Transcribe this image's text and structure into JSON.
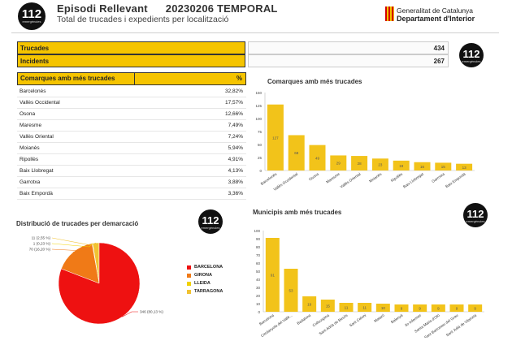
{
  "header": {
    "logo_number": "112",
    "logo_subtext": "emergències",
    "title": "Episodi Rellevant",
    "code": "20230206 TEMPORAL",
    "subtitle": "Total de trucades i expedients per localització",
    "gencat_line1": "Generalitat de Catalunya",
    "gencat_line2": "Departament d'Interior"
  },
  "kpis": {
    "calls_label": "Trucades",
    "calls_value": "434",
    "incidents_label": "Incidents",
    "incidents_value": "267"
  },
  "table": {
    "header_name": "Comarques amb més trucades",
    "header_pct": "%",
    "rows": [
      {
        "name": "Barcelonès",
        "pct": "32,82%"
      },
      {
        "name": "Vallès Occidental",
        "pct": "17,57%"
      },
      {
        "name": "Osona",
        "pct": "12,66%"
      },
      {
        "name": "Maresme",
        "pct": "7,49%"
      },
      {
        "name": "Vallès Oriental",
        "pct": "7,24%"
      },
      {
        "name": "Moianès",
        "pct": "5,94%"
      },
      {
        "name": "Ripollès",
        "pct": "4,91%"
      },
      {
        "name": "Baix Llobregat",
        "pct": "4,13%"
      },
      {
        "name": "Garrotxa",
        "pct": "3,88%"
      },
      {
        "name": "Baix Empordà",
        "pct": "3,36%"
      }
    ]
  },
  "colors": {
    "accent": "#f5c400",
    "bar": "#f2c31a",
    "barcelona": "#ee1111",
    "girona": "#f07a17",
    "lleida": "#f1d100",
    "tarragona": "#f1c232"
  },
  "chart_data": [
    {
      "type": "bar",
      "title": "Comarques amb més trucades",
      "categories": [
        "Barcelonès",
        "Vallès Occidental",
        "Osona",
        "Maresme",
        "Vallès Oriental",
        "Moianès",
        "Ripollès",
        "Baix Llobregat",
        "Garrotxa",
        "Baix Empordà"
      ],
      "values": [
        127,
        68,
        49,
        29,
        28,
        23,
        19,
        16,
        15,
        13
      ],
      "ylim": [
        0,
        150
      ],
      "yticks": [
        0,
        25,
        50,
        75,
        100,
        125,
        150
      ],
      "grid": false
    },
    {
      "type": "bar",
      "title": "Municipis amb més trucades",
      "categories": [
        "Barcelona",
        "Cerdanyola del Vallè...",
        "Badalona",
        "Collsuspina",
        "Sant Adrià de Besòs",
        "Sant Celoni",
        "Mataró",
        "Balenyà",
        "Ilo Infermer",
        "Santa Maria d'Oló",
        "Sant Bartomeu del Grau",
        "Sant Julià de Vilatorta"
      ],
      "values": [
        91,
        53,
        19,
        15,
        11,
        11,
        10,
        9,
        9,
        9,
        9,
        9
      ],
      "ylim": [
        0,
        100
      ],
      "yticks": [
        0,
        10,
        20,
        30,
        40,
        50,
        60,
        70,
        80,
        90,
        100
      ],
      "grid": false
    },
    {
      "type": "pie",
      "title": "Distribució de trucades per demarcació",
      "categories": [
        "BARCELONA",
        "GIRONA",
        "LLEIDA",
        "TARRAGONA"
      ],
      "values": [
        346,
        70,
        1,
        11
      ],
      "labels": [
        "346 (80,13 %)",
        "70 (16,20 %)",
        "1 (0,23 %)",
        "11 (2,55 %)"
      ],
      "legend": "right"
    }
  ]
}
